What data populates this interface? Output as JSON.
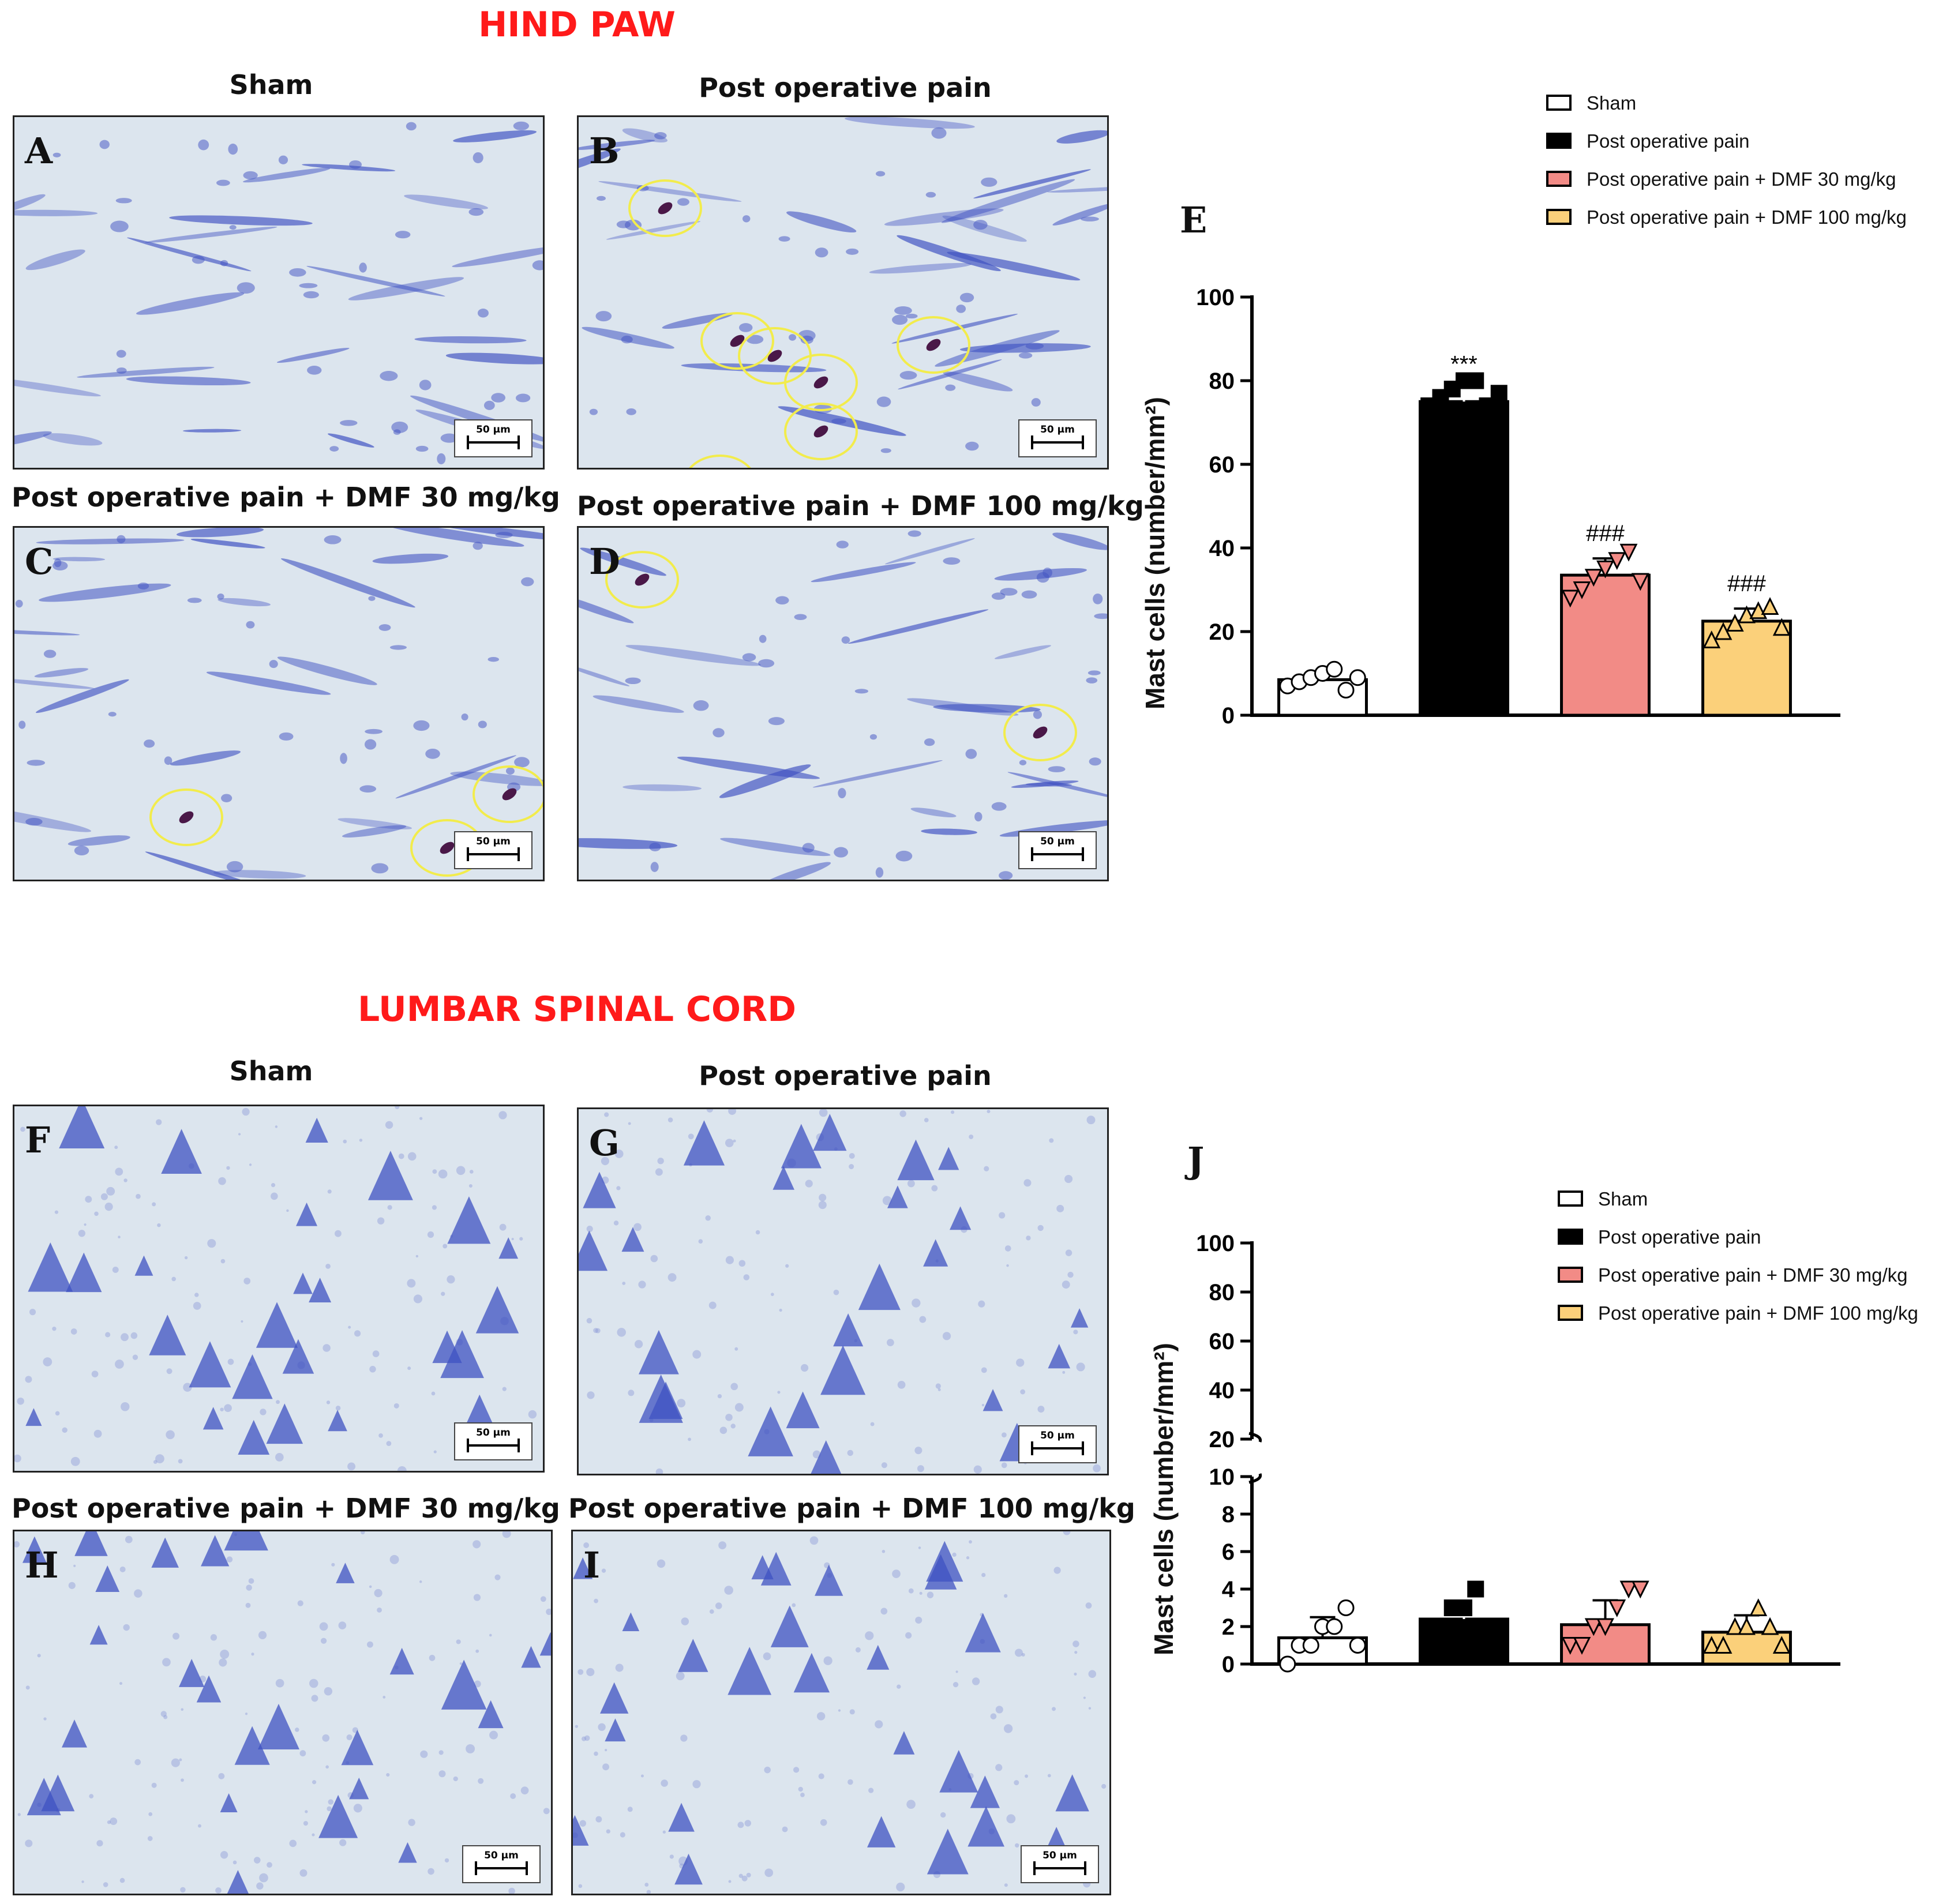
{
  "sections": {
    "hind_paw": "HIND PAW",
    "lumbar": "LUMBAR SPINAL CORD"
  },
  "panel_titles": {
    "A": "Sham",
    "B": "Post operative pain",
    "C": "Post operative pain + DMF 30 mg/kg",
    "D": "Post operative pain + DMF 100 mg/kg",
    "F": "Sham",
    "G": "Post operative pain",
    "H": "Post operative pain + DMF 30 mg/kg",
    "I": "Post operative pain + DMF 100 mg/kg"
  },
  "panel_letters": {
    "A": "A",
    "B": "B",
    "C": "C",
    "D": "D",
    "F": "F",
    "G": "G",
    "H": "H",
    "I": "I"
  },
  "scalebar_label": "50 µm",
  "colors": {
    "sham": "#ffffff",
    "pop": "#000000",
    "dmf30": "#f28b86",
    "dmf100": "#fbd07a",
    "stain_bg": "#dce5ee",
    "stain_cell": "#3f51c2",
    "mast_cell": "#4a1848",
    "circle": "#f2ec4c",
    "title_red": "#ff1a1a"
  },
  "legend": {
    "sham": "Sham",
    "pop": "Post operative pain",
    "dmf30": "Post operative pain + DMF 30 mg/kg",
    "dmf100": "Post operative pain + DMF 100 mg/kg"
  },
  "chart_data": [
    {
      "panel": "E",
      "type": "bar",
      "ylabel": "Mast cells (number/mm²)",
      "ylim": [
        0,
        100
      ],
      "yticks": [
        "0",
        "20",
        "40",
        "60",
        "80",
        "100"
      ],
      "categories": [
        "Sham",
        "Post operative pain",
        "Post operative pain + DMF 30 mg/kg",
        "Post operative pain + DMF 100 mg/kg"
      ],
      "series": [
        {
          "name": "Mast cells",
          "values": [
            8.5,
            75,
            33.5,
            22.5
          ],
          "errors": [
            2,
            3,
            4,
            3
          ],
          "points": [
            [
              7,
              8,
              9,
              10,
              11,
              6,
              9
            ],
            [
              74,
              76,
              78,
              80,
              80,
              74,
              77
            ],
            [
              28,
              30,
              33,
              35,
              37,
              39,
              32
            ],
            [
              18,
              20,
              22,
              24,
              25,
              26,
              21
            ]
          ],
          "markers": [
            "circle",
            "square",
            "triangle-down",
            "triangle-up"
          ],
          "annotations": [
            "",
            "***",
            "###",
            "###"
          ]
        }
      ]
    },
    {
      "panel": "J",
      "type": "bar",
      "ylabel": "Mast cells (number/mm²)",
      "axis_break": true,
      "ylim_lower": [
        0,
        10
      ],
      "ylim_upper": [
        20,
        100
      ],
      "yticks_lower": [
        "0",
        "2",
        "4",
        "6",
        "8",
        "10"
      ],
      "yticks_upper": [
        "20",
        "40",
        "60",
        "80",
        "100"
      ],
      "categories": [
        "Sham",
        "Post operative pain",
        "Post operative pain + DMF 30 mg/kg",
        "Post operative pain + DMF 100 mg/kg"
      ],
      "series": [
        {
          "name": "Mast cells",
          "values": [
            1.4,
            2.4,
            2.1,
            1.7
          ],
          "errors": [
            1.1,
            1.0,
            1.3,
            0.9
          ],
          "points": [
            [
              0,
              1,
              1,
              2,
              2,
              3,
              1
            ],
            [
              2,
              2,
              3,
              3,
              4,
              2,
              2
            ],
            [
              1,
              1,
              2,
              2,
              3,
              4,
              4
            ],
            [
              1,
              1,
              2,
              2,
              3,
              2,
              1
            ]
          ],
          "markers": [
            "circle",
            "square",
            "triangle-down",
            "triangle-up"
          ],
          "annotations": [
            "",
            "",
            "",
            ""
          ]
        }
      ]
    }
  ]
}
